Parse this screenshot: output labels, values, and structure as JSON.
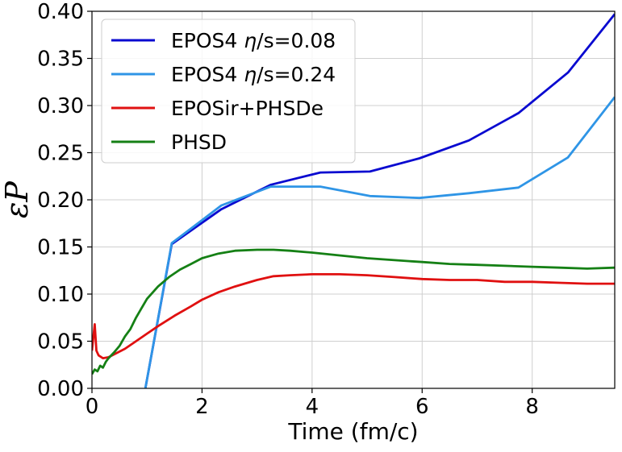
{
  "chart_data": {
    "type": "line",
    "title": "",
    "xlabel": "Time (fm/c)",
    "ylabel": "εP",
    "xlim": [
      0,
      9.5
    ],
    "ylim": [
      0.0,
      0.4
    ],
    "xticks": [
      0,
      2,
      4,
      6,
      8
    ],
    "xtick_labels": [
      "0",
      "2",
      "4",
      "6",
      "8"
    ],
    "yticks": [
      0.0,
      0.05,
      0.1,
      0.15,
      0.2,
      0.25,
      0.3,
      0.35,
      0.4
    ],
    "ytick_labels": [
      "0.00",
      "0.05",
      "0.10",
      "0.15",
      "0.20",
      "0.25",
      "0.30",
      "0.35",
      "0.40"
    ],
    "grid": true,
    "legend_position": "top-left",
    "series": [
      {
        "name": "EPOS4 η/s=0.08",
        "legend_prefix": "EPOS4 ",
        "legend_eta": "η",
        "legend_suffix": "/s=0.08",
        "color": "#0a0ad0",
        "points": [
          [
            0.97,
            0.0
          ],
          [
            1.45,
            0.153
          ],
          [
            2.35,
            0.19
          ],
          [
            3.25,
            0.216
          ],
          [
            4.15,
            0.229
          ],
          [
            5.05,
            0.23
          ],
          [
            5.95,
            0.244
          ],
          [
            6.85,
            0.263
          ],
          [
            7.75,
            0.292
          ],
          [
            8.65,
            0.335
          ],
          [
            9.5,
            0.397
          ]
        ]
      },
      {
        "name": "EPOS4 η/s=0.24",
        "legend_prefix": "EPOS4 ",
        "legend_eta": "η",
        "legend_suffix": "/s=0.24",
        "color": "#2f95e6",
        "points": [
          [
            0.97,
            0.0
          ],
          [
            1.45,
            0.154
          ],
          [
            2.35,
            0.194
          ],
          [
            3.25,
            0.214
          ],
          [
            4.15,
            0.214
          ],
          [
            5.05,
            0.204
          ],
          [
            5.95,
            0.202
          ],
          [
            6.85,
            0.207
          ],
          [
            7.75,
            0.213
          ],
          [
            8.65,
            0.245
          ],
          [
            9.5,
            0.309
          ]
        ]
      },
      {
        "name": "EPOSir+PHSDe",
        "color": "#e01010",
        "points": [
          [
            0.0,
            0.04
          ],
          [
            0.05,
            0.068
          ],
          [
            0.08,
            0.04
          ],
          [
            0.12,
            0.035
          ],
          [
            0.2,
            0.032
          ],
          [
            0.3,
            0.033
          ],
          [
            0.4,
            0.036
          ],
          [
            0.6,
            0.042
          ],
          [
            0.8,
            0.05
          ],
          [
            1.0,
            0.058
          ],
          [
            1.2,
            0.066
          ],
          [
            1.5,
            0.077
          ],
          [
            1.8,
            0.087
          ],
          [
            2.0,
            0.094
          ],
          [
            2.3,
            0.102
          ],
          [
            2.6,
            0.108
          ],
          [
            3.0,
            0.115
          ],
          [
            3.3,
            0.119
          ],
          [
            3.6,
            0.12
          ],
          [
            4.0,
            0.121
          ],
          [
            4.5,
            0.121
          ],
          [
            5.0,
            0.12
          ],
          [
            5.5,
            0.118
          ],
          [
            6.0,
            0.116
          ],
          [
            6.5,
            0.115
          ],
          [
            7.0,
            0.115
          ],
          [
            7.5,
            0.113
          ],
          [
            8.0,
            0.113
          ],
          [
            8.5,
            0.112
          ],
          [
            9.0,
            0.111
          ],
          [
            9.5,
            0.111
          ]
        ]
      },
      {
        "name": "PHSD",
        "color": "#158015",
        "points": [
          [
            0.0,
            0.015
          ],
          [
            0.05,
            0.02
          ],
          [
            0.1,
            0.018
          ],
          [
            0.15,
            0.024
          ],
          [
            0.2,
            0.022
          ],
          [
            0.25,
            0.028
          ],
          [
            0.3,
            0.032
          ],
          [
            0.4,
            0.038
          ],
          [
            0.5,
            0.045
          ],
          [
            0.6,
            0.055
          ],
          [
            0.7,
            0.063
          ],
          [
            0.8,
            0.075
          ],
          [
            0.9,
            0.085
          ],
          [
            1.0,
            0.095
          ],
          [
            1.2,
            0.108
          ],
          [
            1.4,
            0.118
          ],
          [
            1.6,
            0.126
          ],
          [
            1.8,
            0.132
          ],
          [
            2.0,
            0.138
          ],
          [
            2.3,
            0.143
          ],
          [
            2.6,
            0.146
          ],
          [
            3.0,
            0.147
          ],
          [
            3.3,
            0.147
          ],
          [
            3.6,
            0.146
          ],
          [
            4.0,
            0.144
          ],
          [
            4.5,
            0.141
          ],
          [
            5.0,
            0.138
          ],
          [
            5.5,
            0.136
          ],
          [
            6.0,
            0.134
          ],
          [
            6.5,
            0.132
          ],
          [
            7.0,
            0.131
          ],
          [
            7.5,
            0.13
          ],
          [
            8.0,
            0.129
          ],
          [
            8.5,
            0.128
          ],
          [
            9.0,
            0.127
          ],
          [
            9.5,
            0.128
          ]
        ]
      }
    ]
  }
}
